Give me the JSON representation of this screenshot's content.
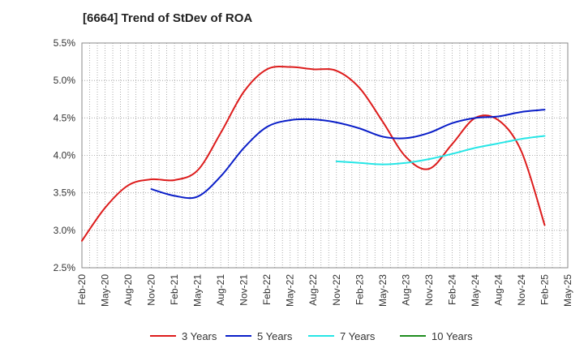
{
  "chart_data": {
    "type": "line",
    "title": "[6664]  Trend of StDev of ROA",
    "xlabel": "",
    "ylabel": "",
    "x": [
      "Feb-20",
      "May-20",
      "Aug-20",
      "Nov-20",
      "Feb-21",
      "May-21",
      "Aug-21",
      "Nov-21",
      "Feb-22",
      "May-22",
      "Aug-22",
      "Nov-22",
      "Feb-23",
      "May-23",
      "Aug-23",
      "Nov-23",
      "Feb-24",
      "May-24",
      "Aug-24",
      "Nov-24",
      "Feb-25",
      "May-25"
    ],
    "y_ticks": [
      "2.5%",
      "3.0%",
      "3.5%",
      "4.0%",
      "4.5%",
      "5.0%",
      "5.5%"
    ],
    "ylim": [
      2.5,
      5.5
    ],
    "grid": true,
    "legend_position": "bottom",
    "series": [
      {
        "name": "3 Years",
        "color": "#dd1c1c",
        "values": [
          2.86,
          3.3,
          3.6,
          3.68,
          3.67,
          3.8,
          4.3,
          4.85,
          5.15,
          5.18,
          5.15,
          5.13,
          4.9,
          4.45,
          3.98,
          3.82,
          4.15,
          4.5,
          4.47,
          4.05,
          3.07,
          null
        ]
      },
      {
        "name": "5 Years",
        "color": "#0a1ec8",
        "values": [
          null,
          null,
          null,
          3.55,
          3.46,
          3.45,
          3.72,
          4.1,
          4.38,
          4.47,
          4.48,
          4.44,
          4.36,
          4.25,
          4.23,
          4.3,
          4.43,
          4.5,
          4.52,
          4.58,
          4.61,
          null
        ]
      },
      {
        "name": "7 Years",
        "color": "#26e6e6",
        "values": [
          null,
          null,
          null,
          null,
          null,
          null,
          null,
          null,
          null,
          null,
          null,
          3.92,
          3.9,
          3.88,
          3.9,
          3.95,
          4.02,
          4.1,
          4.16,
          4.22,
          4.26,
          null
        ]
      },
      {
        "name": "10 Years",
        "color": "#1e8c1e",
        "values": [
          null,
          null,
          null,
          null,
          null,
          null,
          null,
          null,
          null,
          null,
          null,
          null,
          null,
          null,
          null,
          null,
          null,
          null,
          null,
          null,
          null,
          null
        ]
      }
    ]
  }
}
